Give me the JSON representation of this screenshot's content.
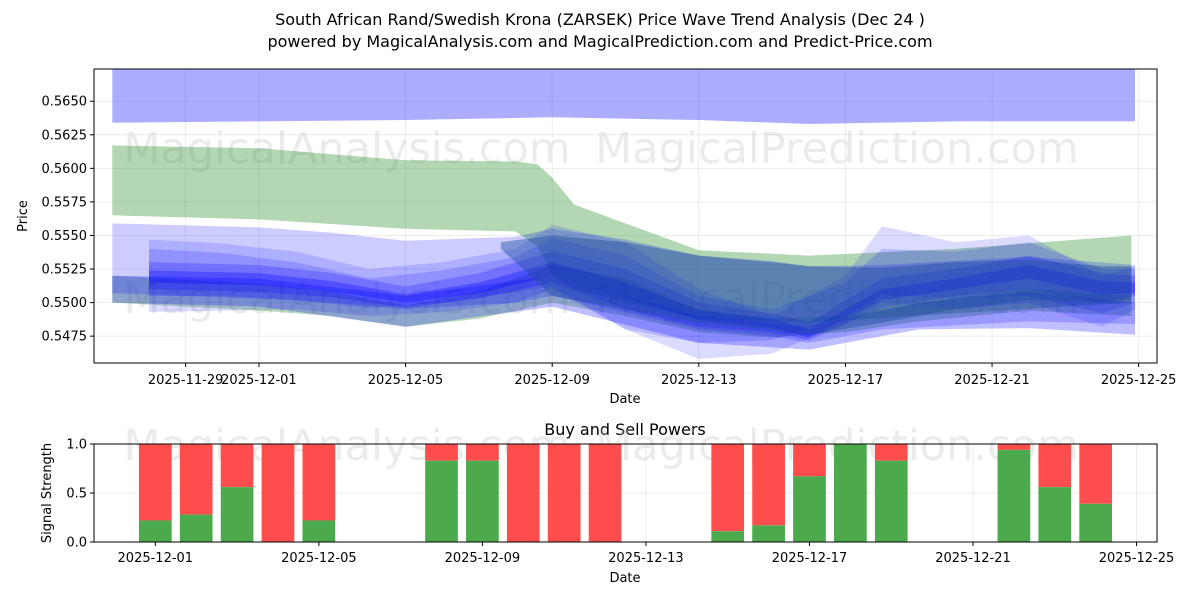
{
  "header": {
    "title": "South African Rand/Swedish Krona (ZARSEK) Price Wave Trend Analysis (Dec 24 )",
    "subtitle": "powered by MagicalAnalysis.com and MagicalPrediction.com and Predict-Price.com"
  },
  "watermarks": [
    "MagicalAnalysis.com",
    "MagicalPrediction.com"
  ],
  "chart_data": [
    {
      "type": "area",
      "title": "",
      "xlabel": "Date",
      "ylabel": "Price",
      "xlim": [
        "2025-11-26T12:00",
        "2025-12-25T12:00"
      ],
      "ylim": [
        0.5455,
        0.5674
      ],
      "xticks": [
        "2025-11-29",
        "2025-12-01",
        "2025-12-05",
        "2025-12-09",
        "2025-12-13",
        "2025-12-17",
        "2025-12-21",
        "2025-12-25"
      ],
      "yticks": [
        "0.5475",
        "0.5500",
        "0.5525",
        "0.5550",
        "0.5575",
        "0.5600",
        "0.5625",
        "0.5650"
      ],
      "grid": true,
      "colors": {
        "blue": "#0000ff",
        "green": "#228b22",
        "dark": "#2050a0"
      },
      "bands": [
        {
          "name": "upper-blue-band",
          "color": "#0000ff",
          "opacity": 0.32,
          "x": [
            "2025-11-27",
            "2025-12-01",
            "2025-12-05",
            "2025-12-09",
            "2025-12-13",
            "2025-12-16",
            "2025-12-20",
            "2025-12-24.9"
          ],
          "upper": [
            0.5674,
            0.5674,
            0.5674,
            0.5674,
            0.5674,
            0.5674,
            0.5674,
            0.5674
          ],
          "lower": [
            0.5634,
            0.5635,
            0.5636,
            0.5638,
            0.5636,
            0.5633,
            0.5635,
            0.5635
          ]
        },
        {
          "name": "green-band-1",
          "color": "#228b22",
          "opacity": 0.35,
          "x": [
            "2025-11-27",
            "2025-12-01",
            "2025-12-05",
            "2025-12-08",
            "2025-12-08.6",
            "2025-12-09",
            "2025-12-09.6",
            "2025-12-13",
            "2025-12-16",
            "2025-12-20",
            "2025-12-24.8"
          ],
          "upper": [
            0.5617,
            0.5615,
            0.5606,
            0.5605,
            0.5603,
            0.5593,
            0.5573,
            0.5539,
            0.5535,
            0.554,
            0.555
          ],
          "lower": [
            0.5565,
            0.5562,
            0.5555,
            0.5553,
            0.5542,
            0.552,
            0.551,
            0.5488,
            0.5485,
            0.5492,
            0.55
          ]
        },
        {
          "name": "green-band-2",
          "color": "#228b22",
          "opacity": 0.3,
          "x": [
            "2025-11-27",
            "2025-11-29",
            "2025-12-01",
            "2025-12-03",
            "2025-12-05",
            "2025-12-07",
            "2025-12-09",
            "2025-12-11",
            "2025-12-13",
            "2025-12-15",
            "2025-12-17",
            "2025-12-19",
            "2025-12-22",
            "2025-12-24.8"
          ],
          "upper": [
            0.552,
            0.5517,
            0.5514,
            0.5508,
            0.5498,
            0.5508,
            0.5528,
            0.5518,
            0.5495,
            0.5488,
            0.549,
            0.55,
            0.551,
            0.5505
          ],
          "lower": [
            0.55,
            0.5497,
            0.5494,
            0.549,
            0.5482,
            0.5488,
            0.55,
            0.549,
            0.5478,
            0.5474,
            0.5478,
            0.5486,
            0.5494,
            0.549
          ]
        },
        {
          "name": "blue-band-wide",
          "color": "#0000ff",
          "opacity": 0.2,
          "x": [
            "2025-11-27",
            "2025-12-01",
            "2025-12-03",
            "2025-12-05",
            "2025-12-08",
            "2025-12-09",
            "2025-12-11",
            "2025-12-13",
            "2025-12-15",
            "2025-12-16",
            "2025-12-18",
            "2025-12-22",
            "2025-12-24.9"
          ],
          "upper": [
            0.5559,
            0.5556,
            0.5552,
            0.5546,
            0.5549,
            0.5555,
            0.5547,
            0.5535,
            0.5531,
            0.5527,
            0.5528,
            0.5534,
            0.5528
          ],
          "lower": [
            0.5507,
            0.5503,
            0.55,
            0.5495,
            0.55,
            0.5505,
            0.5493,
            0.548,
            0.5475,
            0.547,
            0.548,
            0.5486,
            0.5484
          ]
        },
        {
          "name": "blue-band-low",
          "color": "#0000ff",
          "opacity": 0.25,
          "x": [
            "2025-11-27",
            "2025-12-01",
            "2025-12-05",
            "2025-12-09",
            "2025-12-13",
            "2025-12-16",
            "2025-12-19",
            "2025-12-22",
            "2025-12-24.9"
          ],
          "upper": [
            0.552,
            0.5518,
            0.5505,
            0.552,
            0.549,
            0.5482,
            0.55,
            0.5508,
            0.55
          ],
          "lower": [
            0.55,
            0.5497,
            0.5482,
            0.5497,
            0.547,
            0.5465,
            0.548,
            0.5481,
            0.5476
          ]
        },
        {
          "name": "blue-wave-1",
          "color": "#0000ff",
          "opacity": 0.14,
          "x": [
            "2025-11-28",
            "2025-11-30",
            "2025-12-02",
            "2025-12-04",
            "2025-12-06",
            "2025-12-08",
            "2025-12-09",
            "2025-12-11",
            "2025-12-13",
            "2025-12-15",
            "2025-12-17",
            "2025-12-18",
            "2025-12-20",
            "2025-12-22",
            "2025-12-24",
            "2025-12-24.9"
          ],
          "upper": [
            0.5547,
            0.5544,
            0.5538,
            0.5525,
            0.553,
            0.554,
            0.5558,
            0.5545,
            0.551,
            0.549,
            0.552,
            0.5557,
            0.5545,
            0.555,
            0.552,
            0.5527
          ],
          "lower": [
            0.5493,
            0.5494,
            0.5495,
            0.549,
            0.5493,
            0.55,
            0.551,
            0.548,
            0.5458,
            0.5462,
            0.5485,
            0.55,
            0.5495,
            0.55,
            0.5482,
            0.5495
          ]
        },
        {
          "name": "blue-wave-2",
          "color": "#0000ff",
          "opacity": 0.16,
          "x": [
            "2025-11-28",
            "2025-11-30",
            "2025-12-02",
            "2025-12-04",
            "2025-12-06",
            "2025-12-08",
            "2025-12-09",
            "2025-12-11",
            "2025-12-13",
            "2025-12-15",
            "2025-12-17",
            "2025-12-18",
            "2025-12-20",
            "2025-12-22",
            "2025-12-24",
            "2025-12-24.9"
          ],
          "upper": [
            0.554,
            0.5537,
            0.553,
            0.5518,
            0.5524,
            0.5534,
            0.5548,
            0.5535,
            0.5505,
            0.5495,
            0.5515,
            0.554,
            0.5538,
            0.5545,
            0.5525,
            0.5525
          ],
          "lower": [
            0.5505,
            0.5505,
            0.5502,
            0.5496,
            0.55,
            0.5508,
            0.5512,
            0.548,
            0.547,
            0.5472,
            0.549,
            0.5506,
            0.5503,
            0.5505,
            0.5492,
            0.55
          ]
        },
        {
          "name": "blue-wave-3",
          "color": "#0000ff",
          "opacity": 0.22,
          "x": [
            "2025-11-28",
            "2025-12-01",
            "2025-12-03",
            "2025-12-05",
            "2025-12-07",
            "2025-12-09",
            "2025-12-11",
            "2025-12-13",
            "2025-12-15",
            "2025-12-16",
            "2025-12-18",
            "2025-12-20",
            "2025-12-22",
            "2025-12-24",
            "2025-12-24.9"
          ],
          "upper": [
            0.553,
            0.5528,
            0.5522,
            0.5512,
            0.5522,
            0.5538,
            0.5525,
            0.55,
            0.5492,
            0.5485,
            0.5518,
            0.5525,
            0.5535,
            0.5522,
            0.552
          ],
          "lower": [
            0.551,
            0.5508,
            0.5504,
            0.5496,
            0.5503,
            0.5515,
            0.5495,
            0.5482,
            0.5478,
            0.5472,
            0.5496,
            0.5505,
            0.551,
            0.55,
            0.5505
          ]
        },
        {
          "name": "blue-wave-core",
          "color": "#0000ff",
          "opacity": 0.3,
          "x": [
            "2025-11-28",
            "2025-12-01",
            "2025-12-03",
            "2025-12-05",
            "2025-12-07",
            "2025-12-09",
            "2025-12-11",
            "2025-12-13",
            "2025-12-15",
            "2025-12-16",
            "2025-12-18",
            "2025-12-20",
            "2025-12-22",
            "2025-12-24",
            "2025-12-24.9"
          ],
          "upper": [
            0.5524,
            0.5522,
            0.5516,
            0.5506,
            0.5515,
            0.553,
            0.5515,
            0.5494,
            0.5488,
            0.548,
            0.551,
            0.5518,
            0.5528,
            0.5516,
            0.5515
          ],
          "lower": [
            0.5515,
            0.5513,
            0.5508,
            0.55,
            0.5507,
            0.552,
            0.5504,
            0.5487,
            0.5481,
            0.5474,
            0.5502,
            0.551,
            0.5518,
            0.5506,
            0.5507
          ]
        },
        {
          "name": "teal-overlap-band",
          "color": "#2050a0",
          "opacity": 0.45,
          "x": [
            "2025-12-07.6",
            "2025-12-09",
            "2025-12-11",
            "2025-12-13",
            "2025-12-15",
            "2025-12-16",
            "2025-12-18",
            "2025-12-20",
            "2025-12-22",
            "2025-12-24",
            "2025-12-24.8"
          ],
          "upper": [
            0.5545,
            0.555,
            0.5545,
            0.5535,
            0.553,
            0.5527,
            0.5526,
            0.553,
            0.5532,
            0.5527,
            0.5527
          ],
          "lower": [
            0.554,
            0.5505,
            0.5495,
            0.5485,
            0.548,
            0.5476,
            0.5485,
            0.5495,
            0.5502,
            0.55,
            0.5502
          ]
        }
      ]
    },
    {
      "type": "bar",
      "title": "Buy and Sell Powers",
      "xlabel": "Date",
      "ylabel": "Signal Strength",
      "xlim": [
        "2025-11-29.5",
        "2025-12-25.5"
      ],
      "ylim": [
        0,
        1
      ],
      "xticks": [
        "2025-12-01",
        "2025-12-05",
        "2025-12-09",
        "2025-12-13",
        "2025-12-17",
        "2025-12-21",
        "2025-12-25"
      ],
      "yticks": [
        "0.0",
        "0.5",
        "1.0"
      ],
      "grid": true,
      "colors": {
        "buy": "#4caa4c",
        "sell": "#ff4c4c"
      },
      "series": [
        {
          "name": "Buy",
          "color": "#4caa4c"
        },
        {
          "name": "Sell",
          "color": "#ff4c4c"
        }
      ],
      "bars": [
        {
          "date": "2025-12-01",
          "buy": 0.22
        },
        {
          "date": "2025-12-02",
          "buy": 0.28
        },
        {
          "date": "2025-12-03",
          "buy": 0.56
        },
        {
          "date": "2025-12-04",
          "buy": 0.0
        },
        {
          "date": "2025-12-05",
          "buy": 0.22
        },
        {
          "date": "2025-12-08",
          "buy": 0.83
        },
        {
          "date": "2025-12-09",
          "buy": 0.83
        },
        {
          "date": "2025-12-10",
          "buy": 0.0
        },
        {
          "date": "2025-12-11",
          "buy": 0.0
        },
        {
          "date": "2025-12-12",
          "buy": 0.0
        },
        {
          "date": "2025-12-15",
          "buy": 0.11
        },
        {
          "date": "2025-12-16",
          "buy": 0.17
        },
        {
          "date": "2025-12-17",
          "buy": 0.67
        },
        {
          "date": "2025-12-18",
          "buy": 1.0
        },
        {
          "date": "2025-12-19",
          "buy": 0.83
        },
        {
          "date": "2025-12-22",
          "buy": 0.94
        },
        {
          "date": "2025-12-23",
          "buy": 0.56
        },
        {
          "date": "2025-12-24",
          "buy": 0.39
        }
      ]
    }
  ]
}
